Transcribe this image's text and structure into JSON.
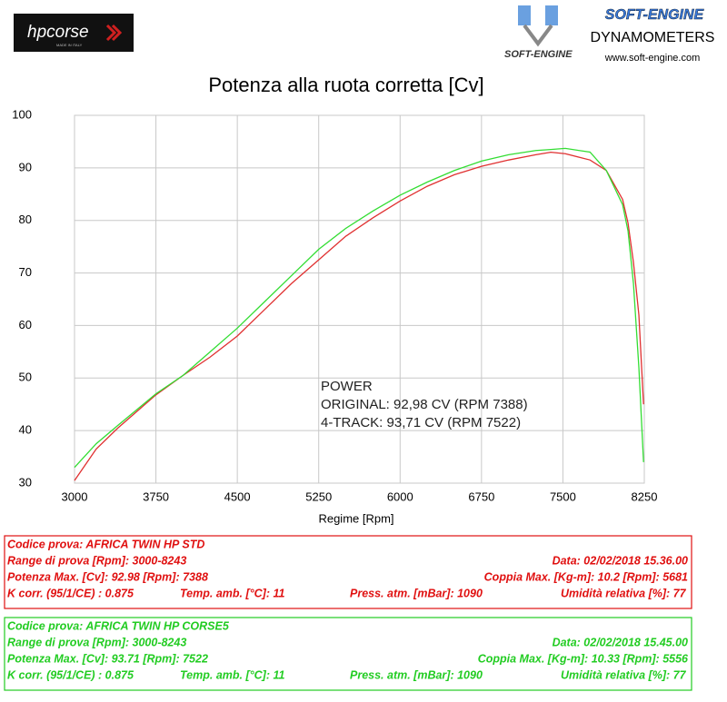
{
  "header": {
    "brand": "hpcorse",
    "brand_sub": "MADE IN ITALY",
    "logo_text": "SOFT-ENGINE",
    "company": "SOFT-ENGINE",
    "product": "DYNAMOMETERS",
    "website": "www.soft-engine.com"
  },
  "chart_data": {
    "type": "line",
    "title": "Potenza alla ruota corretta [Cv]",
    "x_label": "Regime [Rpm]",
    "x": [
      3000,
      3200,
      3400,
      3750,
      4000,
      4250,
      4500,
      4750,
      5000,
      5250,
      5500,
      5750,
      6000,
      6250,
      6500,
      6750,
      7000,
      7250,
      7388,
      7522,
      7750,
      7900,
      8050,
      8100,
      8150,
      8200,
      8243
    ],
    "series": [
      {
        "color": "#e03030",
        "values": [
          30.5,
          36.5,
          40.5,
          46.8,
          50.5,
          54,
          58,
          63,
          68,
          72.5,
          77,
          80.5,
          83.7,
          86.5,
          88.7,
          90.3,
          91.5,
          92.5,
          92.98,
          92.7,
          91.5,
          89.5,
          84,
          79.5,
          72,
          62,
          45
        ]
      },
      {
        "color": "#33dd33",
        "values": [
          33,
          37.5,
          41,
          47,
          50.5,
          55,
          59.5,
          64.5,
          69.5,
          74.5,
          78.5,
          81.8,
          84.8,
          87.3,
          89.5,
          91.3,
          92.5,
          93.3,
          93.5,
          93.71,
          93,
          89.5,
          83,
          78,
          68,
          52,
          34
        ]
      }
    ],
    "xlim": [
      3000,
      8250
    ],
    "xticks": [
      3000,
      3750,
      4500,
      5250,
      6000,
      6750,
      7500,
      8250
    ],
    "ylim": [
      30,
      100
    ],
    "yticks": [
      30,
      40,
      50,
      60,
      70,
      80,
      90,
      100
    ],
    "grid": true,
    "annotations": [
      "POWER",
      "ORIGINAL: 92,98 CV (RPM 7388)",
      "4-TRACK: 93,71 CV (RPM 7522)"
    ]
  },
  "info_boxes": [
    {
      "color": "#e01010",
      "rows": [
        [
          "Codice prova: AFRICA TWIN HP STD"
        ],
        [
          "Range di prova [Rpm]: 3000-8243",
          "Data: 02/02/2018   15.36.00"
        ],
        [
          "Potenza Max. [Cv]: 92.98   [Rpm]: 7388",
          "Coppia Max. [Kg-m]: 10.2   [Rpm]: 5681"
        ],
        [
          "K corr. (95/1/CE) : 0.875",
          "Temp. amb. [°C]: 11",
          "Press. atm. [mBar]: 1090",
          "Umidità relativa [%]: 77"
        ]
      ]
    },
    {
      "color": "#22cc22",
      "rows": [
        [
          "Codice prova: AFRICA TWIN HP CORSE5"
        ],
        [
          "Range di prova [Rpm]: 3000-8243",
          "Data: 02/02/2018   15.45.00"
        ],
        [
          "Potenza Max. [Cv]: 93.71   [Rpm]: 7522",
          "Coppia Max. [Kg-m]: 10.33   [Rpm]: 5556"
        ],
        [
          "K corr. (95/1/CE) : 0.875",
          "Temp. amb. [°C]: 11",
          "Press. atm. [mBar]: 1090",
          "Umidità relativa [%]: 77"
        ]
      ]
    }
  ]
}
